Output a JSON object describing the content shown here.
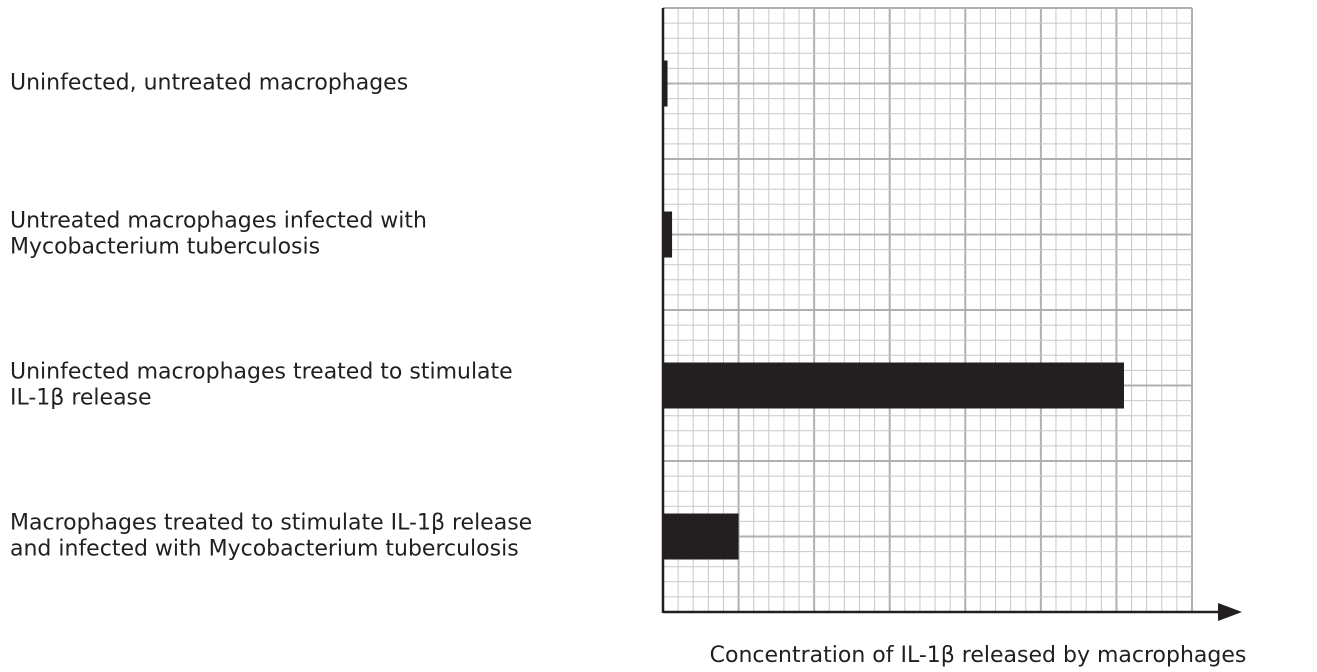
{
  "chart_data": {
    "type": "barh",
    "x_label": "Concentration of IL-1β released by macrophages",
    "categories": [
      [
        "Uninfected, untreated macrophages"
      ],
      [
        "Untreated macrophages infected with",
        "Mycobacterium tuberculosis"
      ],
      [
        "Uninfected macrophages treated to stimulate",
        "IL-1β release"
      ],
      [
        "Macrophages treated to stimulate IL-1β release",
        "and infected with Mycobacterium tuberculosis"
      ]
    ],
    "values": [
      0.3,
      0.6,
      30.5,
      5
    ],
    "color": "#231f20",
    "xlim": [
      0,
      35
    ],
    "grid": true
  }
}
